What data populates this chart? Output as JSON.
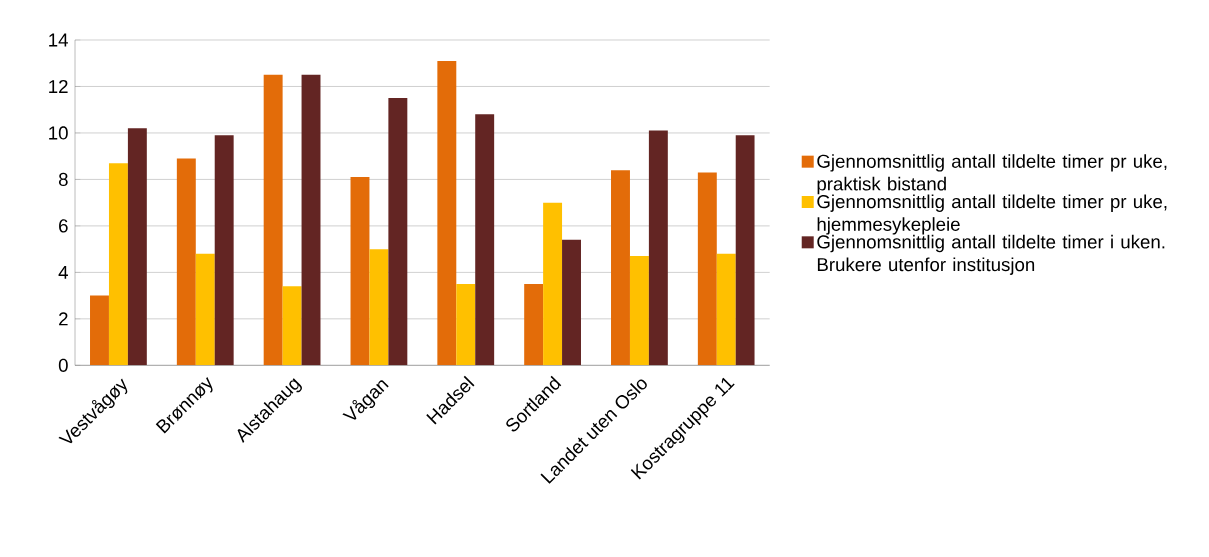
{
  "chart_data": {
    "type": "bar",
    "categories": [
      "Vestvågøy",
      "Brønnøy",
      "Alstahaug",
      "Vågan",
      "Hadsel",
      "Sortland",
      "Landet uten Oslo",
      "Kostragruppe 11"
    ],
    "series": [
      {
        "name": "Gjennomsnittlig antall tildelte timer pr uke, praktisk bistand",
        "color": "#e36c09",
        "values": [
          3.0,
          8.9,
          12.5,
          8.1,
          13.1,
          3.5,
          8.4,
          8.3
        ]
      },
      {
        "name": "Gjennomsnittlig antall tildelte timer pr uke, hjemmesykepleie",
        "color": "#ffc000",
        "values": [
          8.7,
          4.8,
          3.4,
          5.0,
          3.5,
          7.0,
          4.7,
          4.8
        ]
      },
      {
        "name": "Gjennomsnittlig antall tildelte timer i uken. Brukere utenfor institusjon",
        "color": "#632523",
        "values": [
          10.2,
          9.9,
          12.5,
          11.5,
          10.8,
          5.4,
          10.1,
          9.9
        ]
      }
    ],
    "ylim": [
      0,
      14
    ],
    "yticks": [
      0,
      2,
      4,
      6,
      8,
      10,
      12,
      14
    ],
    "grid": "y",
    "legend": "right"
  }
}
